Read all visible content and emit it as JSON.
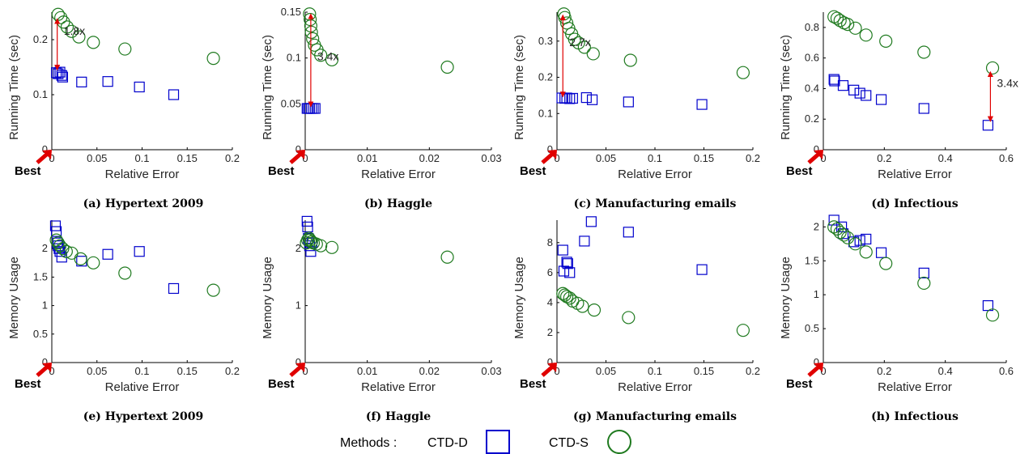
{
  "legend": {
    "title": "Methods :",
    "items": [
      {
        "label": "CTD-D",
        "marker": "square",
        "color": "#0000cc"
      },
      {
        "label": "CTD-S",
        "marker": "circle",
        "color": "#1f7a1f"
      }
    ]
  },
  "best_label": "Best",
  "chart_data": [
    {
      "type": "scatter",
      "caption": "(a) Hypertext 2009",
      "xlabel": "Relative Error",
      "ylabel": "Running Time (sec)",
      "xlim": [
        0,
        0.2
      ],
      "ylim": [
        0,
        0.25
      ],
      "xticks": [
        0,
        0.05,
        0.1,
        0.15,
        0.2
      ],
      "xtick_labels": [
        "0",
        "0.05",
        "0.1",
        "0.15",
        "0.2"
      ],
      "yticks": [
        0,
        0.1,
        0.2
      ],
      "ytick_labels": [
        "0",
        "0.1",
        "0.2"
      ],
      "series": [
        {
          "name": "CTD-D",
          "x": [
            0.005,
            0.007,
            0.009,
            0.011,
            0.012,
            0.033,
            0.062,
            0.097,
            0.135
          ],
          "y": [
            0.14,
            0.138,
            0.141,
            0.135,
            0.132,
            0.123,
            0.124,
            0.114,
            0.1
          ]
        },
        {
          "name": "CTD-S",
          "x": [
            0.007,
            0.01,
            0.013,
            0.017,
            0.022,
            0.03,
            0.046,
            0.081,
            0.179
          ],
          "y": [
            0.246,
            0.24,
            0.232,
            0.223,
            0.215,
            0.205,
            0.195,
            0.183,
            0.166
          ]
        }
      ],
      "annotation": {
        "text": "1.8x",
        "x": 0.006,
        "y_from": 0.238,
        "y_to": 0.145
      }
    },
    {
      "type": "scatter",
      "caption": "(b) Haggle",
      "xlabel": "Relative Error",
      "ylabel": "Running Time (sec)",
      "xlim": [
        0,
        0.03
      ],
      "ylim": [
        0,
        0.15
      ],
      "xticks": [
        0,
        0.01,
        0.02,
        0.03
      ],
      "xtick_labels": [
        "0",
        "0.01",
        "0.02",
        "0.03"
      ],
      "yticks": [
        0,
        0.05,
        0.1,
        0.15
      ],
      "ytick_labels": [
        "0",
        "0.05",
        "0.1",
        "0.15"
      ],
      "series": [
        {
          "name": "CTD-D",
          "x": [
            0.0003,
            0.0005,
            0.0007,
            0.001,
            0.0013,
            0.0016
          ],
          "y": [
            0.045,
            0.045,
            0.045,
            0.045,
            0.045,
            0.045
          ]
        },
        {
          "name": "CTD-S",
          "x": [
            0.0007,
            0.0008,
            0.0009,
            0.001,
            0.0012,
            0.0015,
            0.0019,
            0.0025,
            0.0043,
            0.0229
          ],
          "y": [
            0.148,
            0.142,
            0.135,
            0.128,
            0.121,
            0.114,
            0.109,
            0.103,
            0.098,
            0.09
          ]
        }
      ],
      "annotation": {
        "text": "3.4x",
        "x": 0.0009,
        "y_from": 0.148,
        "y_to": 0.047
      }
    },
    {
      "type": "scatter",
      "caption": "(c) Manufacturing emails",
      "xlabel": "Relative Error",
      "ylabel": "Running Time (sec)",
      "xlim": [
        0,
        0.2
      ],
      "ylim": [
        0,
        0.38
      ],
      "xticks": [
        0,
        0.05,
        0.1,
        0.15,
        0.2
      ],
      "xtick_labels": [
        "0",
        "0.05",
        "0.1",
        "0.15",
        "0.2"
      ],
      "yticks": [
        0,
        0.1,
        0.2,
        0.3
      ],
      "ytick_labels": [
        "0",
        "0.1",
        "0.2",
        "0.3"
      ],
      "series": [
        {
          "name": "CTD-D",
          "x": [
            0.005,
            0.008,
            0.01,
            0.013,
            0.016,
            0.03,
            0.036,
            0.073,
            0.148
          ],
          "y": [
            0.143,
            0.142,
            0.143,
            0.141,
            0.142,
            0.144,
            0.138,
            0.132,
            0.125
          ]
        },
        {
          "name": "CTD-S",
          "x": [
            0.007,
            0.008,
            0.01,
            0.012,
            0.015,
            0.018,
            0.022,
            0.028,
            0.037,
            0.075,
            0.19
          ],
          "y": [
            0.375,
            0.365,
            0.35,
            0.335,
            0.32,
            0.305,
            0.295,
            0.283,
            0.265,
            0.247,
            0.213
          ]
        }
      ],
      "annotation": {
        "text": "2.7x",
        "x": 0.006,
        "y_from": 0.372,
        "y_to": 0.146
      }
    },
    {
      "type": "scatter",
      "caption": "(d) Infectious",
      "xlabel": "Relative Error",
      "ylabel": "Running Time (sec)",
      "xlim": [
        0,
        0.6
      ],
      "ylim": [
        0,
        0.9
      ],
      "xticks": [
        0,
        0.2,
        0.4,
        0.6
      ],
      "xtick_labels": [
        "0",
        "0.2",
        "0.4",
        "0.6"
      ],
      "yticks": [
        0,
        0.2,
        0.4,
        0.6,
        0.8
      ],
      "ytick_labels": [
        "0",
        "0.2",
        "0.4",
        "0.6",
        "0.8"
      ],
      "series": [
        {
          "name": "CTD-D",
          "x": [
            0.035,
            0.037,
            0.065,
            0.1,
            0.12,
            0.14,
            0.19,
            0.33,
            0.54
          ],
          "y": [
            0.46,
            0.45,
            0.42,
            0.39,
            0.37,
            0.355,
            0.328,
            0.27,
            0.16
          ]
        },
        {
          "name": "CTD-S",
          "x": [
            0.035,
            0.045,
            0.055,
            0.068,
            0.08,
            0.105,
            0.14,
            0.205,
            0.33,
            0.555
          ],
          "y": [
            0.87,
            0.86,
            0.845,
            0.83,
            0.82,
            0.795,
            0.75,
            0.71,
            0.638,
            0.535
          ]
        }
      ],
      "annotation": {
        "text": "3.4x",
        "x": 0.548,
        "y_from": 0.51,
        "y_to": 0.185
      }
    },
    {
      "type": "scatter",
      "caption": "(e) Hypertext 2009",
      "xlabel": "Relative Error",
      "ylabel": "Memory Usage",
      "xlim": [
        0,
        0.2
      ],
      "ylim": [
        0,
        2.5
      ],
      "xticks": [
        0,
        0.05,
        0.1,
        0.15,
        0.2
      ],
      "xtick_labels": [
        "0",
        "0.05",
        "0.1",
        "0.15",
        "0.2"
      ],
      "yticks": [
        0,
        0.5,
        1,
        1.5,
        2
      ],
      "ytick_labels": [
        "0",
        "0.5",
        "1",
        "1.5",
        "2"
      ],
      "series": [
        {
          "name": "CTD-D",
          "x": [
            0.004,
            0.005,
            0.006,
            0.007,
            0.008,
            0.009,
            0.011,
            0.033,
            0.062,
            0.097,
            0.135
          ],
          "y": [
            2.4,
            2.3,
            2.1,
            2.05,
            2.0,
            1.95,
            1.85,
            1.78,
            1.9,
            1.95,
            1.3
          ]
        },
        {
          "name": "CTD-S",
          "x": [
            0.005,
            0.007,
            0.009,
            0.012,
            0.016,
            0.022,
            0.032,
            0.046,
            0.081,
            0.179
          ],
          "y": [
            2.15,
            2.1,
            2.05,
            2.0,
            1.95,
            1.92,
            1.82,
            1.75,
            1.57,
            1.27
          ]
        }
      ]
    },
    {
      "type": "scatter",
      "caption": "(f) Haggle",
      "xlabel": "Relative Error",
      "ylabel": "Memory Usage",
      "xlim": [
        0,
        0.03
      ],
      "ylim": [
        0,
        2.5
      ],
      "xticks": [
        0,
        0.01,
        0.02,
        0.03
      ],
      "xtick_labels": [
        "0",
        "0.01",
        "0.02",
        "0.03"
      ],
      "yticks": [
        0,
        1,
        2
      ],
      "ytick_labels": [
        "0",
        "1",
        "2"
      ],
      "series": [
        {
          "name": "CTD-D",
          "x": [
            0.0003,
            0.0004,
            0.0005,
            0.0007,
            0.0009,
            0.0011
          ],
          "y": [
            2.48,
            2.38,
            2.18,
            2.05,
            1.95,
            2.1
          ]
        },
        {
          "name": "CTD-S",
          "x": [
            0.0002,
            0.0004,
            0.0006,
            0.0008,
            0.001,
            0.0013,
            0.0018,
            0.0025,
            0.0043,
            0.0229
          ],
          "y": [
            2.1,
            2.15,
            2.18,
            2.15,
            2.12,
            2.1,
            2.08,
            2.05,
            2.02,
            1.85
          ]
        }
      ]
    },
    {
      "type": "scatter",
      "caption": "(g) Manufacturing emails",
      "xlabel": "Relative Error",
      "ylabel": "Memory Usage",
      "xlim": [
        0,
        0.2
      ],
      "ylim": [
        0,
        9.5
      ],
      "xticks": [
        0,
        0.05,
        0.1,
        0.15,
        0.2
      ],
      "xtick_labels": [
        "0",
        "0.05",
        "0.1",
        "0.15",
        "0.2"
      ],
      "yticks": [
        0,
        2,
        4,
        6,
        8
      ],
      "ytick_labels": [
        "0",
        "2",
        "4",
        "6",
        "8"
      ],
      "series": [
        {
          "name": "CTD-D",
          "x": [
            0.006,
            0.007,
            0.01,
            0.011,
            0.013,
            0.028,
            0.035,
            0.073,
            0.148
          ],
          "y": [
            7.5,
            6.1,
            6.7,
            6.6,
            6.0,
            8.1,
            9.4,
            8.7,
            6.2
          ]
        },
        {
          "name": "CTD-S",
          "x": [
            0.006,
            0.008,
            0.01,
            0.013,
            0.016,
            0.021,
            0.026,
            0.038,
            0.073,
            0.19
          ],
          "y": [
            4.6,
            4.5,
            4.4,
            4.3,
            4.1,
            3.95,
            3.75,
            3.5,
            3.0,
            2.15
          ]
        }
      ]
    },
    {
      "type": "scatter",
      "caption": "(h) Infectious",
      "xlabel": "Relative Error",
      "ylabel": "Memory Usage",
      "xlim": [
        0,
        0.6
      ],
      "ylim": [
        0,
        2.1
      ],
      "xticks": [
        0,
        0.2,
        0.4,
        0.6
      ],
      "xtick_labels": [
        "0",
        "0.2",
        "0.4",
        "0.6"
      ],
      "yticks": [
        0,
        0.5,
        1,
        1.5,
        2
      ],
      "ytick_labels": [
        "0",
        "0.5",
        "1",
        "1.5",
        "2"
      ],
      "series": [
        {
          "name": "CTD-D",
          "x": [
            0.035,
            0.06,
            0.065,
            0.1,
            0.12,
            0.14,
            0.19,
            0.33,
            0.54
          ],
          "y": [
            2.1,
            2.0,
            1.9,
            1.78,
            1.8,
            1.82,
            1.62,
            1.32,
            0.84
          ]
        },
        {
          "name": "CTD-S",
          "x": [
            0.035,
            0.045,
            0.055,
            0.068,
            0.08,
            0.105,
            0.14,
            0.205,
            0.33,
            0.555
          ],
          "y": [
            2.0,
            1.97,
            1.92,
            1.88,
            1.84,
            1.75,
            1.63,
            1.46,
            1.17,
            0.7
          ]
        }
      ]
    }
  ]
}
